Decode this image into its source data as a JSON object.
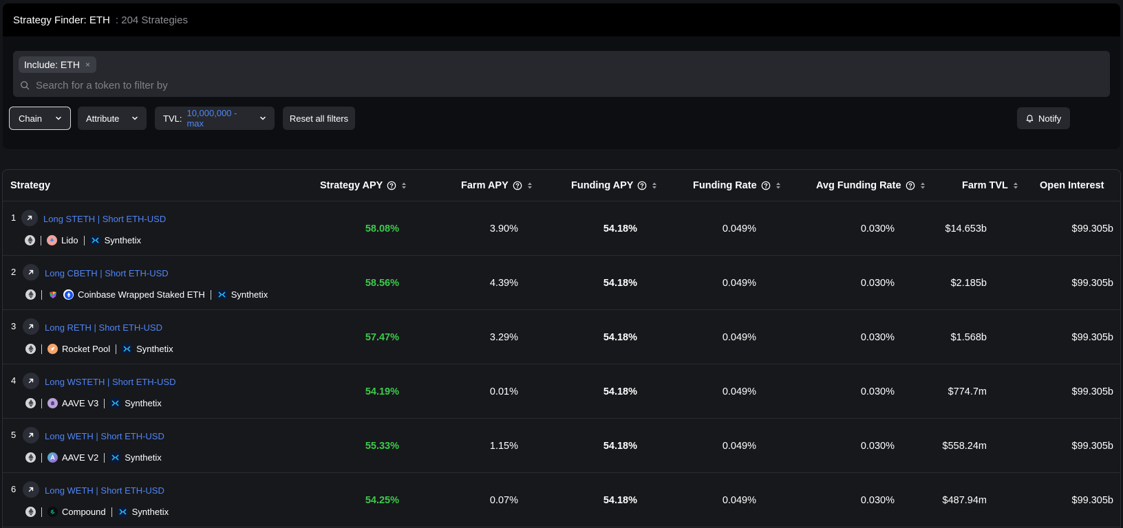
{
  "header": {
    "title": "Strategy Finder: ETH",
    "count": ": 204 Strategies"
  },
  "filters": {
    "chip_label": "Include: ETH",
    "chip_remove": "×",
    "search_placeholder": "Search for a token to filter by",
    "chain_label": "Chain",
    "attribute_label": "Attribute",
    "tvl_label": "TVL:",
    "tvl_value": "10,000,000 - max",
    "reset_label": "Reset all filters",
    "notify_label": "Notify"
  },
  "colors": {
    "accent_blue": "#4f86f7",
    "apy_green": "#3ccb4a",
    "background": "#141518"
  },
  "table": {
    "columns": {
      "strategy": "Strategy",
      "strategy_apy": "Strategy APY",
      "farm_apy": "Farm APY",
      "funding_apy": "Funding APY",
      "funding_rate": "Funding Rate",
      "avg_funding_rate": "Avg Funding Rate",
      "farm_tvl": "Farm TVL",
      "open_interest": "Open Interest"
    },
    "rows": [
      {
        "index": "1",
        "name": "Long STETH | Short ETH-USD",
        "protocols": [
          "Lido",
          "Synthetix"
        ],
        "strategy_apy": "58.08%",
        "farm_apy": "3.90%",
        "funding_apy": "54.18%",
        "funding_rate": "0.049%",
        "avg_funding_rate": "0.030%",
        "farm_tvl": "$14.653b",
        "open_interest": "$99.305b"
      },
      {
        "index": "2",
        "name": "Long CBETH | Short ETH-USD",
        "protocols": [
          "Coinbase Wrapped Staked ETH",
          "Synthetix"
        ],
        "strategy_apy": "58.56%",
        "farm_apy": "4.39%",
        "funding_apy": "54.18%",
        "funding_rate": "0.049%",
        "avg_funding_rate": "0.030%",
        "farm_tvl": "$2.185b",
        "open_interest": "$99.305b"
      },
      {
        "index": "3",
        "name": "Long RETH | Short ETH-USD",
        "protocols": [
          "Rocket Pool",
          "Synthetix"
        ],
        "strategy_apy": "57.47%",
        "farm_apy": "3.29%",
        "funding_apy": "54.18%",
        "funding_rate": "0.049%",
        "avg_funding_rate": "0.030%",
        "farm_tvl": "$1.568b",
        "open_interest": "$99.305b"
      },
      {
        "index": "4",
        "name": "Long WSTETH | Short ETH-USD",
        "protocols": [
          "AAVE V3",
          "Synthetix"
        ],
        "strategy_apy": "54.19%",
        "farm_apy": "0.01%",
        "funding_apy": "54.18%",
        "funding_rate": "0.049%",
        "avg_funding_rate": "0.030%",
        "farm_tvl": "$774.7m",
        "open_interest": "$99.305b"
      },
      {
        "index": "5",
        "name": "Long WETH | Short ETH-USD",
        "protocols": [
          "AAVE V2",
          "Synthetix"
        ],
        "strategy_apy": "55.33%",
        "farm_apy": "1.15%",
        "funding_apy": "54.18%",
        "funding_rate": "0.049%",
        "avg_funding_rate": "0.030%",
        "farm_tvl": "$558.24m",
        "open_interest": "$99.305b"
      },
      {
        "index": "6",
        "name": "Long WETH | Short ETH-USD",
        "protocols": [
          "Compound",
          "Synthetix"
        ],
        "strategy_apy": "54.25%",
        "farm_apy": "0.07%",
        "funding_apy": "54.18%",
        "funding_rate": "0.049%",
        "avg_funding_rate": "0.030%",
        "farm_tvl": "$487.94m",
        "open_interest": "$99.305b"
      }
    ]
  }
}
